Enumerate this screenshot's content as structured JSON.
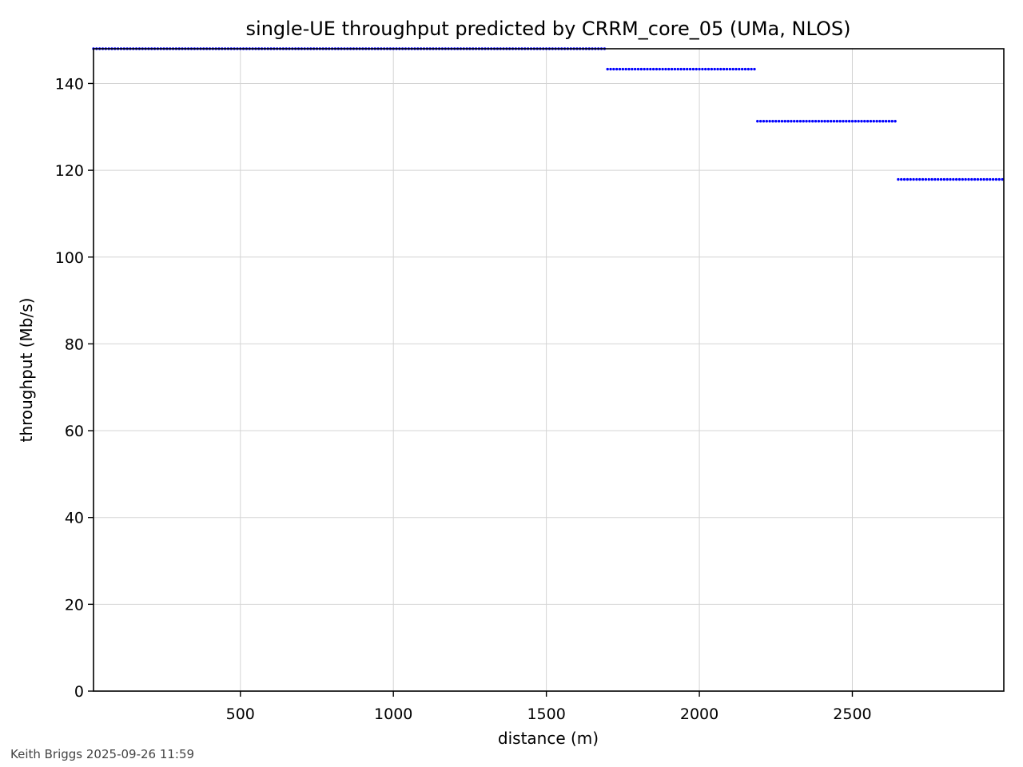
{
  "chart_data": {
    "type": "scatter",
    "title": "single-UE throughput predicted by CRRM_core_05 (UMa, NLOS)",
    "xlabel": "distance (m)",
    "ylabel": "throughput (Mb/s)",
    "xlim": [
      20,
      2995
    ],
    "ylim": [
      0,
      148
    ],
    "xticks": [
      500,
      1000,
      1500,
      2000,
      2500
    ],
    "yticks": [
      0,
      20,
      40,
      60,
      80,
      100,
      120,
      140
    ],
    "grid": true,
    "marker_color": "#0000ff",
    "series": [
      {
        "segments": [
          {
            "x_start": 20,
            "x_end": 1695,
            "y": 148.0
          },
          {
            "x_start": 1700,
            "x_end": 2185,
            "y": 143.3
          },
          {
            "x_start": 2190,
            "x_end": 2645,
            "y": 131.3
          },
          {
            "x_start": 2650,
            "x_end": 2995,
            "y": 117.9
          }
        ],
        "x_step": 10
      }
    ]
  },
  "footer": {
    "credit": "Keith Briggs 2025-09-26 11:59"
  }
}
